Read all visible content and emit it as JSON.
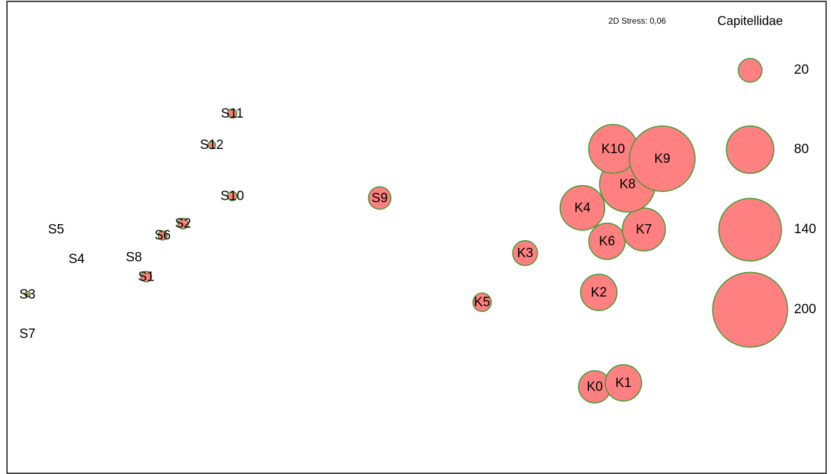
{
  "chart_data": {
    "type": "bubble",
    "title": "Capitellidae",
    "annotation": "2D Stress: 0,06",
    "color": "#ff8080",
    "edge_color": "#3c9a2e",
    "xlim": [
      -2,
      2
    ],
    "ylim": [
      -1.2,
      1.2
    ],
    "labels": [
      "S11",
      "S12",
      "S10",
      "S9",
      "S2",
      "S6",
      "S5",
      "S4",
      "S8",
      "S1",
      "S3",
      "S7",
      "K5",
      "K3",
      "K2",
      "K0",
      "K1",
      "K4",
      "K6",
      "K7",
      "K8",
      "K10",
      "K9"
    ],
    "x": [
      -0.9,
      -1.0,
      -0.9,
      -0.18,
      -1.14,
      -1.24,
      -1.76,
      -1.66,
      -1.38,
      -1.32,
      -1.9,
      -1.9,
      0.32,
      0.53,
      0.89,
      0.87,
      1.01,
      0.81,
      0.93,
      1.11,
      1.03,
      0.96,
      1.2
    ],
    "y": [
      0.63,
      0.47,
      0.21,
      0.2,
      0.07,
      0.01,
      0.04,
      -0.11,
      -0.1,
      -0.2,
      -0.29,
      -0.49,
      -0.33,
      -0.08,
      -0.28,
      -0.76,
      -0.74,
      0.15,
      -0.02,
      0.04,
      0.27,
      0.45,
      0.4
    ],
    "sizes": [
      3,
      2,
      3,
      18,
      4,
      3,
      0,
      0,
      0,
      4,
      1,
      0,
      12,
      22,
      47,
      37,
      47,
      71,
      47,
      66,
      111,
      85,
      153
    ],
    "legend_sizes": [
      20,
      80,
      140,
      200
    ]
  }
}
